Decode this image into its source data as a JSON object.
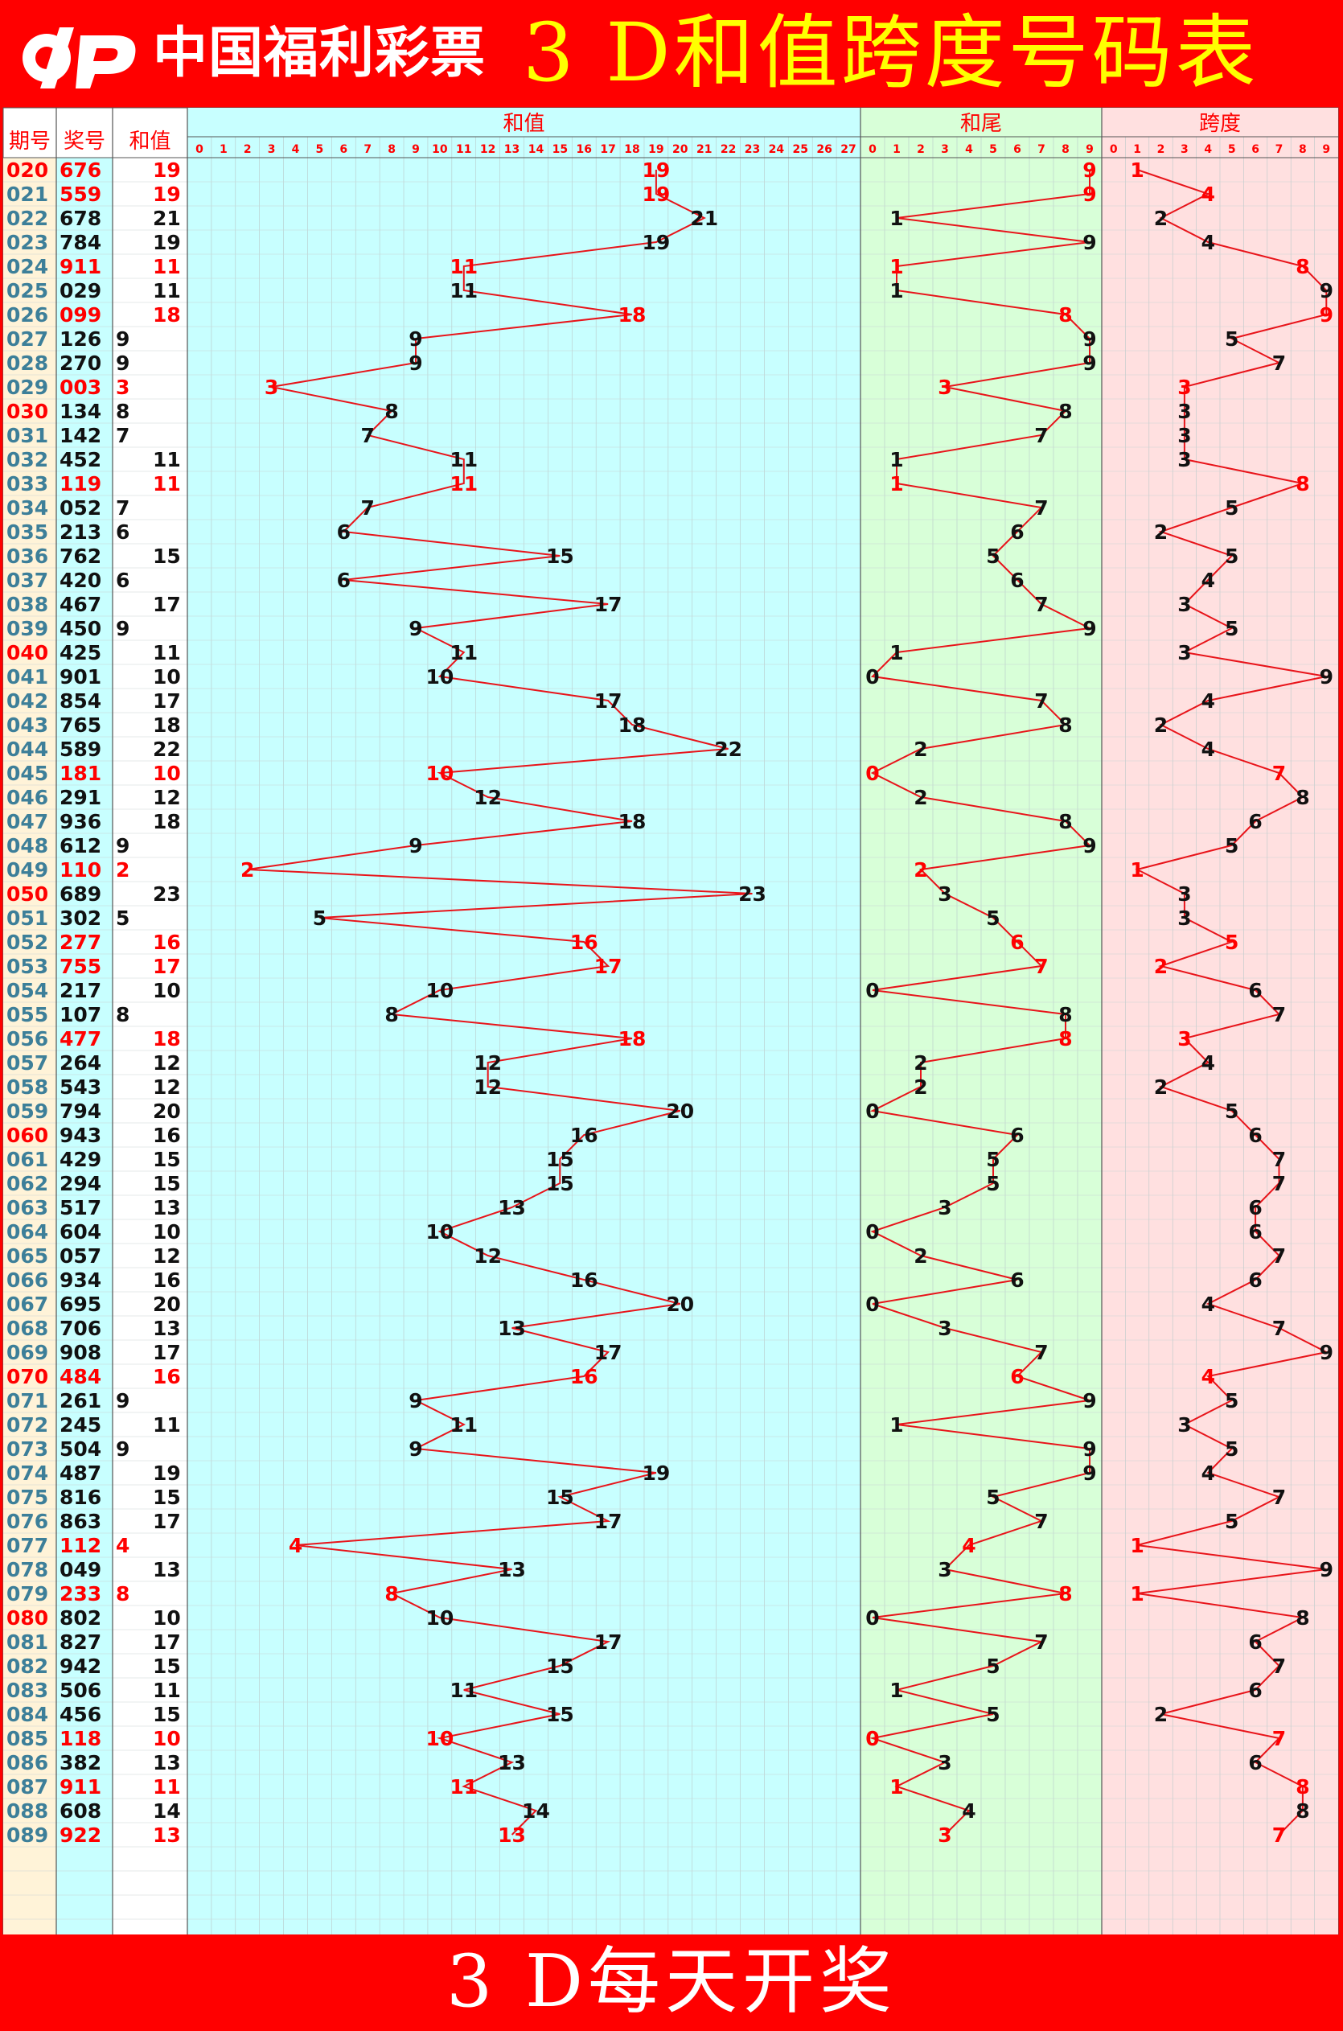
{
  "header": {
    "brand": "中国福利彩票",
    "title": "3 D和值跨度号码表"
  },
  "footer": {
    "text": "3 D每天开奖"
  },
  "colors": {
    "background": "#ff0000",
    "title": "#ffff00",
    "line": "#e8141a",
    "sum_zone": "#c8ffff",
    "tail_zone": "#d8ffd8",
    "span_zone": "#ffe0e0",
    "period_col": "#fff3d8",
    "number_col": "#c8ffff",
    "period_text": "#3d7f99",
    "highlight": "#ff0000"
  },
  "chart_data": {
    "type": "table",
    "title": "3 D和值跨度号码表",
    "columns": [
      "期号",
      "奖号",
      "和值"
    ],
    "zones": [
      {
        "label": "和值",
        "ticks": [
          0,
          1,
          2,
          3,
          4,
          5,
          6,
          7,
          8,
          9,
          10,
          11,
          12,
          13,
          14,
          15,
          16,
          17,
          18,
          19,
          20,
          21,
          22,
          23,
          24,
          25,
          26,
          27
        ]
      },
      {
        "label": "和尾",
        "ticks": [
          0,
          1,
          2,
          3,
          4,
          5,
          6,
          7,
          8,
          9
        ]
      },
      {
        "label": "跨度",
        "ticks": [
          0,
          1,
          2,
          3,
          4,
          5,
          6,
          7,
          8,
          9
        ]
      }
    ],
    "rows": [
      {
        "period": "020",
        "number": "676",
        "sum": 19,
        "tail": 9,
        "span": 1,
        "red": true,
        "red_period": true
      },
      {
        "period": "021",
        "number": "559",
        "sum": 19,
        "tail": 9,
        "span": 4,
        "red": true,
        "red_period": false
      },
      {
        "period": "022",
        "number": "678",
        "sum": 21,
        "tail": 1,
        "span": 2,
        "red": false,
        "red_period": false
      },
      {
        "period": "023",
        "number": "784",
        "sum": 19,
        "tail": 9,
        "span": 4,
        "red": false,
        "red_period": false
      },
      {
        "period": "024",
        "number": "911",
        "sum": 11,
        "tail": 1,
        "span": 8,
        "red": true,
        "red_period": false
      },
      {
        "period": "025",
        "number": "029",
        "sum": 11,
        "tail": 1,
        "span": 9,
        "red": false,
        "red_period": false
      },
      {
        "period": "026",
        "number": "099",
        "sum": 18,
        "tail": 8,
        "span": 9,
        "red": true,
        "red_period": false
      },
      {
        "period": "027",
        "number": "126",
        "sum": 9,
        "tail": 9,
        "span": 5,
        "red": false,
        "red_period": false
      },
      {
        "period": "028",
        "number": "270",
        "sum": 9,
        "tail": 9,
        "span": 7,
        "red": false,
        "red_period": false
      },
      {
        "period": "029",
        "number": "003",
        "sum": 3,
        "tail": 3,
        "span": 3,
        "red": true,
        "red_period": false
      },
      {
        "period": "030",
        "number": "134",
        "sum": 8,
        "tail": 8,
        "span": 3,
        "red": false,
        "red_period": true
      },
      {
        "period": "031",
        "number": "142",
        "sum": 7,
        "tail": 7,
        "span": 3,
        "red": false,
        "red_period": false
      },
      {
        "period": "032",
        "number": "452",
        "sum": 11,
        "tail": 1,
        "span": 3,
        "red": false,
        "red_period": false
      },
      {
        "period": "033",
        "number": "119",
        "sum": 11,
        "tail": 1,
        "span": 8,
        "red": true,
        "red_period": false
      },
      {
        "period": "034",
        "number": "052",
        "sum": 7,
        "tail": 7,
        "span": 5,
        "red": false,
        "red_period": false
      },
      {
        "period": "035",
        "number": "213",
        "sum": 6,
        "tail": 6,
        "span": 2,
        "red": false,
        "red_period": false
      },
      {
        "period": "036",
        "number": "762",
        "sum": 15,
        "tail": 5,
        "span": 5,
        "red": false,
        "red_period": false
      },
      {
        "period": "037",
        "number": "420",
        "sum": 6,
        "tail": 6,
        "span": 4,
        "red": false,
        "red_period": false
      },
      {
        "period": "038",
        "number": "467",
        "sum": 17,
        "tail": 7,
        "span": 3,
        "red": false,
        "red_period": false
      },
      {
        "period": "039",
        "number": "450",
        "sum": 9,
        "tail": 9,
        "span": 5,
        "red": false,
        "red_period": false
      },
      {
        "period": "040",
        "number": "425",
        "sum": 11,
        "tail": 1,
        "span": 3,
        "red": false,
        "red_period": true
      },
      {
        "period": "041",
        "number": "901",
        "sum": 10,
        "tail": 0,
        "span": 9,
        "red": false,
        "red_period": false
      },
      {
        "period": "042",
        "number": "854",
        "sum": 17,
        "tail": 7,
        "span": 4,
        "red": false,
        "red_period": false
      },
      {
        "period": "043",
        "number": "765",
        "sum": 18,
        "tail": 8,
        "span": 2,
        "red": false,
        "red_period": false
      },
      {
        "period": "044",
        "number": "589",
        "sum": 22,
        "tail": 2,
        "span": 4,
        "red": false,
        "red_period": false
      },
      {
        "period": "045",
        "number": "181",
        "sum": 10,
        "tail": 0,
        "span": 7,
        "red": true,
        "red_period": false
      },
      {
        "period": "046",
        "number": "291",
        "sum": 12,
        "tail": 2,
        "span": 8,
        "red": false,
        "red_period": false
      },
      {
        "period": "047",
        "number": "936",
        "sum": 18,
        "tail": 8,
        "span": 6,
        "red": false,
        "red_period": false
      },
      {
        "period": "048",
        "number": "612",
        "sum": 9,
        "tail": 9,
        "span": 5,
        "red": false,
        "red_period": false
      },
      {
        "period": "049",
        "number": "110",
        "sum": 2,
        "tail": 2,
        "span": 1,
        "red": true,
        "red_period": false
      },
      {
        "period": "050",
        "number": "689",
        "sum": 23,
        "tail": 3,
        "span": 3,
        "red": false,
        "red_period": true
      },
      {
        "period": "051",
        "number": "302",
        "sum": 5,
        "tail": 5,
        "span": 3,
        "red": false,
        "red_period": false
      },
      {
        "period": "052",
        "number": "277",
        "sum": 16,
        "tail": 6,
        "span": 5,
        "red": true,
        "red_period": false
      },
      {
        "period": "053",
        "number": "755",
        "sum": 17,
        "tail": 7,
        "span": 2,
        "red": true,
        "red_period": false
      },
      {
        "period": "054",
        "number": "217",
        "sum": 10,
        "tail": 0,
        "span": 6,
        "red": false,
        "red_period": false
      },
      {
        "period": "055",
        "number": "107",
        "sum": 8,
        "tail": 8,
        "span": 7,
        "red": false,
        "red_period": false
      },
      {
        "period": "056",
        "number": "477",
        "sum": 18,
        "tail": 8,
        "span": 3,
        "red": true,
        "red_period": false
      },
      {
        "period": "057",
        "number": "264",
        "sum": 12,
        "tail": 2,
        "span": 4,
        "red": false,
        "red_period": false
      },
      {
        "period": "058",
        "number": "543",
        "sum": 12,
        "tail": 2,
        "span": 2,
        "red": false,
        "red_period": false
      },
      {
        "period": "059",
        "number": "794",
        "sum": 20,
        "tail": 0,
        "span": 5,
        "red": false,
        "red_period": false
      },
      {
        "period": "060",
        "number": "943",
        "sum": 16,
        "tail": 6,
        "span": 6,
        "red": false,
        "red_period": true
      },
      {
        "period": "061",
        "number": "429",
        "sum": 15,
        "tail": 5,
        "span": 7,
        "red": false,
        "red_period": false
      },
      {
        "period": "062",
        "number": "294",
        "sum": 15,
        "tail": 5,
        "span": 7,
        "red": false,
        "red_period": false
      },
      {
        "period": "063",
        "number": "517",
        "sum": 13,
        "tail": 3,
        "span": 6,
        "red": false,
        "red_period": false
      },
      {
        "period": "064",
        "number": "604",
        "sum": 10,
        "tail": 0,
        "span": 6,
        "red": false,
        "red_period": false
      },
      {
        "period": "065",
        "number": "057",
        "sum": 12,
        "tail": 2,
        "span": 7,
        "red": false,
        "red_period": false
      },
      {
        "period": "066",
        "number": "934",
        "sum": 16,
        "tail": 6,
        "span": 6,
        "red": false,
        "red_period": false
      },
      {
        "period": "067",
        "number": "695",
        "sum": 20,
        "tail": 0,
        "span": 4,
        "red": false,
        "red_period": false
      },
      {
        "period": "068",
        "number": "706",
        "sum": 13,
        "tail": 3,
        "span": 7,
        "red": false,
        "red_period": false
      },
      {
        "period": "069",
        "number": "908",
        "sum": 17,
        "tail": 7,
        "span": 9,
        "red": false,
        "red_period": false
      },
      {
        "period": "070",
        "number": "484",
        "sum": 16,
        "tail": 6,
        "span": 4,
        "red": true,
        "red_period": true
      },
      {
        "period": "071",
        "number": "261",
        "sum": 9,
        "tail": 9,
        "span": 5,
        "red": false,
        "red_period": false
      },
      {
        "period": "072",
        "number": "245",
        "sum": 11,
        "tail": 1,
        "span": 3,
        "red": false,
        "red_period": false
      },
      {
        "period": "073",
        "number": "504",
        "sum": 9,
        "tail": 9,
        "span": 5,
        "red": false,
        "red_period": false
      },
      {
        "period": "074",
        "number": "487",
        "sum": 19,
        "tail": 9,
        "span": 4,
        "red": false,
        "red_period": false
      },
      {
        "period": "075",
        "number": "816",
        "sum": 15,
        "tail": 5,
        "span": 7,
        "red": false,
        "red_period": false
      },
      {
        "period": "076",
        "number": "863",
        "sum": 17,
        "tail": 7,
        "span": 5,
        "red": false,
        "red_period": false
      },
      {
        "period": "077",
        "number": "112",
        "sum": 4,
        "tail": 4,
        "span": 1,
        "red": true,
        "red_period": false
      },
      {
        "period": "078",
        "number": "049",
        "sum": 13,
        "tail": 3,
        "span": 9,
        "red": false,
        "red_period": false
      },
      {
        "period": "079",
        "number": "233",
        "sum": 8,
        "tail": 8,
        "span": 1,
        "red": true,
        "red_period": false
      },
      {
        "period": "080",
        "number": "802",
        "sum": 10,
        "tail": 0,
        "span": 8,
        "red": false,
        "red_period": true
      },
      {
        "period": "081",
        "number": "827",
        "sum": 17,
        "tail": 7,
        "span": 6,
        "red": false,
        "red_period": false
      },
      {
        "period": "082",
        "number": "942",
        "sum": 15,
        "tail": 5,
        "span": 7,
        "red": false,
        "red_period": false
      },
      {
        "period": "083",
        "number": "506",
        "sum": 11,
        "tail": 1,
        "span": 6,
        "red": false,
        "red_period": false
      },
      {
        "period": "084",
        "number": "456",
        "sum": 15,
        "tail": 5,
        "span": 2,
        "red": false,
        "red_period": false
      },
      {
        "period": "085",
        "number": "118",
        "sum": 10,
        "tail": 0,
        "span": 7,
        "red": true,
        "red_period": false
      },
      {
        "period": "086",
        "number": "382",
        "sum": 13,
        "tail": 3,
        "span": 6,
        "red": false,
        "red_period": false
      },
      {
        "period": "087",
        "number": "911",
        "sum": 11,
        "tail": 1,
        "span": 8,
        "red": true,
        "red_period": false
      },
      {
        "period": "088",
        "number": "608",
        "sum": 14,
        "tail": 4,
        "span": 8,
        "red": false,
        "red_period": false
      },
      {
        "period": "089",
        "number": "922",
        "sum": 13,
        "tail": 3,
        "span": 7,
        "red": true,
        "red_period": false
      }
    ]
  }
}
